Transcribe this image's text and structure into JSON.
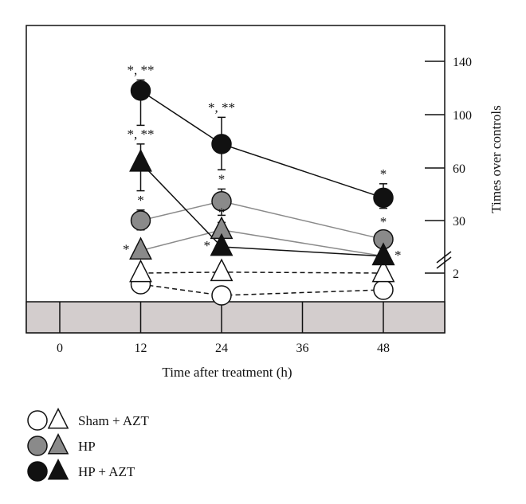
{
  "chart_data": {
    "type": "line",
    "xlabel": "Time after treatment (h)",
    "ylabel": "Times over controls",
    "x_ticks": [
      0,
      12,
      24,
      36,
      48
    ],
    "y_ticks": [
      2,
      30,
      60,
      100,
      140
    ],
    "axis_break": true,
    "y_scale": "broken",
    "grid": false,
    "legend_position": "bottom-left",
    "colors": {
      "sham_azt": "#ffffff",
      "hp": "#8a8a8a",
      "hp_azt": "#111111",
      "band": "#d3cdcd"
    },
    "series": [
      {
        "name": "Sham + AZT",
        "marker": "circle",
        "line_style": "dashed",
        "color": "#ffffff",
        "points": [
          {
            "x": 12,
            "y": 1.2,
            "err_lo": 0.7,
            "err_hi": 1.6,
            "annotation": ""
          },
          {
            "x": 24,
            "y": 0.4,
            "err_lo": 0.1,
            "err_hi": 0.7,
            "annotation": ""
          },
          {
            "x": 48,
            "y": 0.8,
            "err_lo": 0.6,
            "err_hi": 1.0,
            "annotation": ""
          }
        ]
      },
      {
        "name": "Sham + AZT",
        "marker": "triangle",
        "line_style": "dashed",
        "color": "#ffffff",
        "points": [
          {
            "x": 12,
            "y": 2.0,
            "err_lo": 1.6,
            "err_hi": 2.4,
            "annotation": ""
          },
          {
            "x": 24,
            "y": 2.5,
            "err_lo": 2.0,
            "err_hi": 3.0,
            "annotation": ""
          },
          {
            "x": 48,
            "y": 2.0,
            "err_lo": 1.7,
            "err_hi": 2.3,
            "annotation": ""
          }
        ]
      },
      {
        "name": "HP",
        "marker": "circle",
        "line_style": "solid",
        "color": "#8a8a8a",
        "points": [
          {
            "x": 12,
            "y": 30,
            "err_lo": 25,
            "err_hi": 36,
            "annotation": "*"
          },
          {
            "x": 24,
            "y": 41,
            "err_lo": 33,
            "err_hi": 48,
            "annotation": "*"
          },
          {
            "x": 48,
            "y": 20,
            "err_lo": 17,
            "err_hi": 24,
            "annotation": "*"
          }
        ]
      },
      {
        "name": "HP",
        "marker": "triangle",
        "line_style": "solid",
        "color": "#8a8a8a",
        "points": [
          {
            "x": 12,
            "y": 14,
            "err_lo": 12,
            "err_hi": 16,
            "annotation": "*"
          },
          {
            "x": 24,
            "y": 25,
            "err_lo": 21,
            "err_hi": 29,
            "annotation": "*"
          },
          {
            "x": 48,
            "y": 11,
            "err_lo": 9,
            "err_hi": 13,
            "annotation": ""
          }
        ]
      },
      {
        "name": "HP + AZT",
        "marker": "circle",
        "line_style": "solid",
        "color": "#111111",
        "points": [
          {
            "x": 12,
            "y": 118,
            "err_lo": 92,
            "err_hi": 126,
            "annotation": "*, **"
          },
          {
            "x": 24,
            "y": 78,
            "err_lo": 59,
            "err_hi": 98,
            "annotation": "*, **"
          },
          {
            "x": 48,
            "y": 43,
            "err_lo": 37,
            "err_hi": 51,
            "annotation": "*"
          }
        ]
      },
      {
        "name": "HP + AZT",
        "marker": "triangle",
        "line_style": "solid",
        "color": "#111111",
        "points": [
          {
            "x": 12,
            "y": 64,
            "err_lo": 47,
            "err_hi": 78,
            "annotation": "*, **"
          },
          {
            "x": 24,
            "y": 16,
            "err_lo": 14,
            "err_hi": 18,
            "annotation": "*"
          },
          {
            "x": 48,
            "y": 11,
            "err_lo": 9,
            "err_hi": 13,
            "annotation": "*"
          }
        ]
      }
    ],
    "legend": [
      {
        "label": "Sham + AZT",
        "color": "#ffffff"
      },
      {
        "label": "HP",
        "color": "#8a8a8a"
      },
      {
        "label": "HP + AZT",
        "color": "#111111"
      }
    ]
  }
}
